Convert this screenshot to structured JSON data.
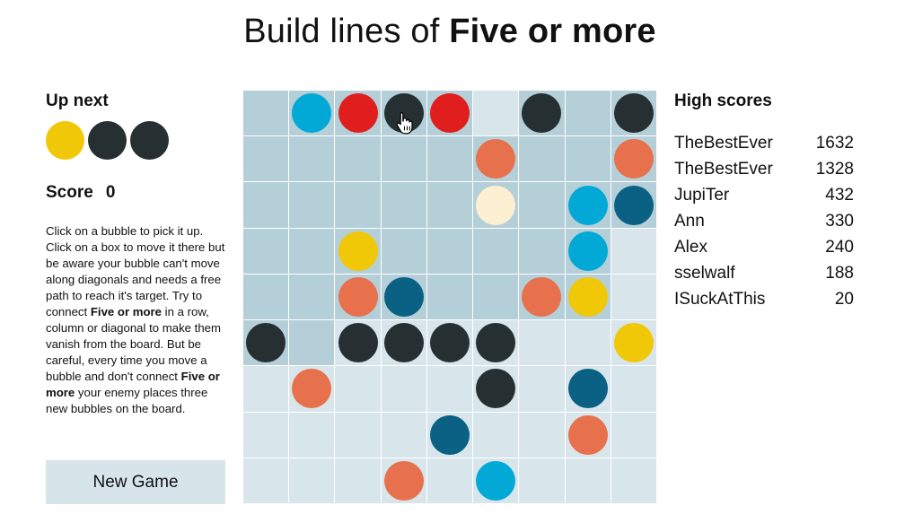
{
  "title": {
    "prefix": "Build lines of ",
    "bold": "Five or more"
  },
  "up_next": {
    "label": "Up next",
    "balls": [
      "#f0c808",
      "#263033",
      "#263033"
    ]
  },
  "score": {
    "label": "Score",
    "value": "0"
  },
  "description": {
    "part1": "Click on a bubble to pick it up. Click on a box to move it there but be aware your bubble can't move along diagonals and needs a free path to reach it's target. Try to connect ",
    "bold1": "Five or more",
    "part2": " in a row, column or diagonal to make them vanish from the board. But be careful, every time you move a bubble and don't connect ",
    "bold2": "Five or more",
    "part3": " your enemy places three new bubbles on the board."
  },
  "new_game_label": "New Game",
  "colors": {
    "B": "#03a9d6",
    "R": "#e01e1e",
    "K": "#263033",
    "O": "#e8714d",
    "C": "#fcefd2",
    "Y": "#f0c808",
    "N": "#0a6184",
    "cell_dark": "#b5cfd8",
    "cell_light": "#d8e6ec"
  },
  "board": {
    "shades": [
      "DDDDDLDDD",
      "DDDDDDDDD",
      "DDDDDDDDD",
      "DDDDDDDDL",
      "DDDDDDDDL",
      "DDLLLLLLL",
      "LLLLLLLLL",
      "LLLLLLLLL",
      "LLLLLLLLL"
    ],
    "balls": [
      ".BRKR.K.K",
      ".....O..O",
      ".....C.BN",
      "..Y....B.",
      "..ON..OY.",
      "K.KKKK..Y",
      ".O...K.N.",
      "....N..O.",
      "...O.B..."
    ]
  },
  "high_scores": {
    "title": "High scores",
    "entries": [
      {
        "name": "TheBestEver",
        "score": "1632"
      },
      {
        "name": "TheBestEver",
        "score": "1328"
      },
      {
        "name": "JupiTer",
        "score": "432"
      },
      {
        "name": "Ann",
        "score": "330"
      },
      {
        "name": "Alex",
        "score": "240"
      },
      {
        "name": "sselwalf",
        "score": "188"
      },
      {
        "name": "ISuckAtThis",
        "score": "20"
      }
    ]
  }
}
